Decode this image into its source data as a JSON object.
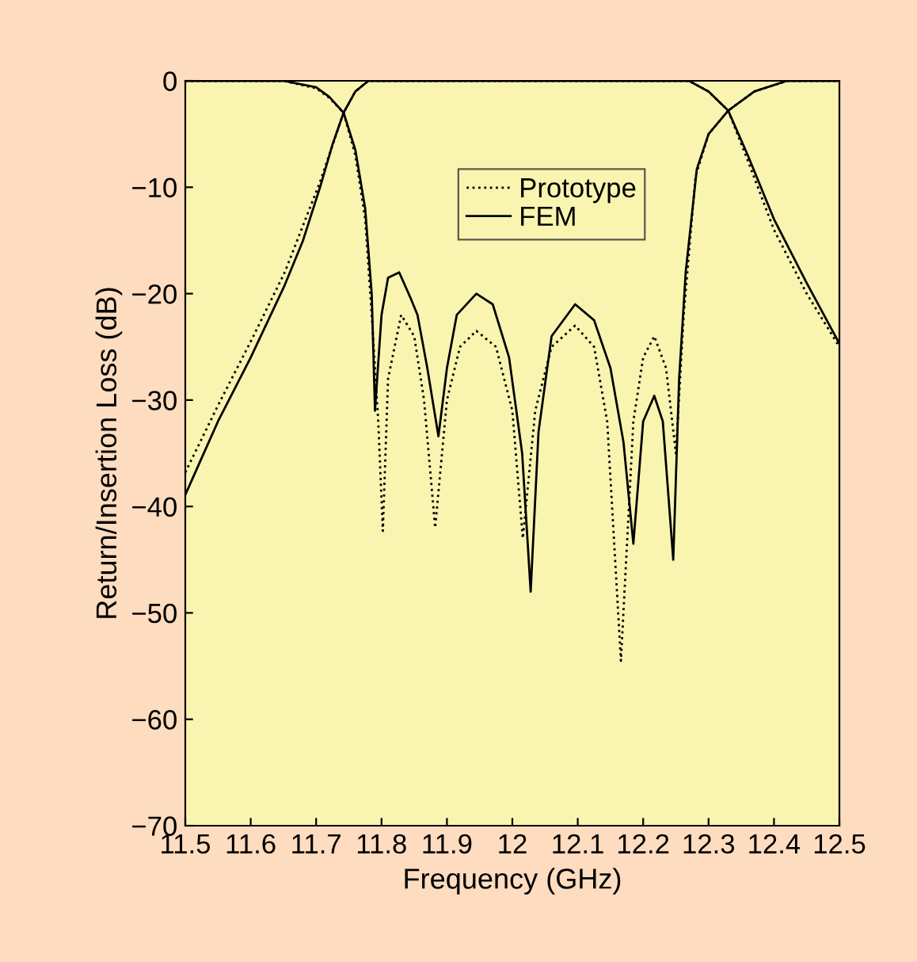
{
  "chart_data": {
    "type": "line",
    "xlabel": "Frequency (GHz)",
    "ylabel": "Return/Insertion Loss (dB)",
    "xlim": [
      11.5,
      12.5
    ],
    "xticks": [
      11.5,
      11.6,
      11.7,
      11.8,
      11.9,
      12,
      12.1,
      12.2,
      12.3,
      12.4,
      12.5
    ],
    "ylim": [
      -70,
      0
    ],
    "yticks": [
      {
        "value": -70,
        "label": "−70"
      },
      {
        "value": -60,
        "label": "−60"
      },
      {
        "value": -50,
        "label": "−50"
      },
      {
        "value": -40,
        "label": "−40"
      },
      {
        "value": -30,
        "label": "−30"
      },
      {
        "value": -20,
        "label": "−20"
      },
      {
        "value": -10,
        "label": "−10"
      },
      0
    ],
    "grid": false,
    "legend": "top",
    "marker": "none",
    "series": [
      {
        "name": "Prototype",
        "color": "#000000",
        "line_style": "dotted",
        "x": [
          11.5,
          11.65,
          11.7,
          11.72,
          11.742,
          11.76,
          11.775,
          11.785,
          11.795,
          11.802,
          11.81,
          11.83,
          11.85,
          11.865,
          11.882,
          11.9,
          11.92,
          11.945,
          11.975,
          12.0,
          12.016,
          12.035,
          12.06,
          12.096,
          12.125,
          12.145,
          12.166,
          12.185,
          12.2,
          12.217,
          12.235,
          12.25,
          12.262,
          12.28,
          12.3,
          12.33,
          12.37,
          12.42,
          12.5
        ],
        "values": [
          0,
          0,
          -0.7,
          -1.6,
          -3,
          -7,
          -13,
          -22,
          -32,
          -42.3,
          -28,
          -22,
          -24,
          -30,
          -42,
          -30,
          -25,
          -23.5,
          -25,
          -31,
          -43,
          -31,
          -25,
          -23,
          -25,
          -32,
          -54.5,
          -32,
          -26,
          -24,
          -27,
          -35,
          -22,
          -9,
          -5,
          -2.8,
          -1,
          0,
          0
        ]
      },
      {
        "color": "#000000",
        "line_style": "dotted",
        "x": [
          11.5,
          11.55,
          11.6,
          11.652,
          11.706,
          11.742,
          11.76,
          11.78,
          12.27,
          12.3,
          12.33,
          12.36,
          12.4,
          12.45,
          12.5
        ],
        "values": [
          -36.8,
          -30.5,
          -24.5,
          -18,
          -9.5,
          -3,
          -1,
          0,
          0,
          -1,
          -2.8,
          -7.5,
          -14,
          -20,
          -25
        ]
      },
      {
        "name": "FEM",
        "color": "#000000",
        "line_style": "solid",
        "x": [
          11.5,
          11.65,
          11.7,
          11.72,
          11.742,
          11.76,
          11.775,
          11.785,
          11.79,
          11.8,
          11.81,
          11.827,
          11.845,
          11.855,
          11.87,
          11.887,
          11.9,
          11.915,
          11.945,
          11.97,
          11.995,
          12.015,
          12.028,
          12.04,
          12.06,
          12.096,
          12.125,
          12.15,
          12.17,
          12.185,
          12.2,
          12.217,
          12.23,
          12.246,
          12.255,
          12.265,
          12.282,
          12.3,
          12.33,
          12.37,
          12.42,
          12.5
        ],
        "values": [
          0,
          0,
          -0.6,
          -1.5,
          -3,
          -6.5,
          -12,
          -20,
          -31,
          -22,
          -18.5,
          -18,
          -20.5,
          -22,
          -27,
          -33.4,
          -27,
          -22,
          -20,
          -21,
          -26,
          -35,
          -48,
          -33,
          -24,
          -21,
          -22.5,
          -27,
          -34,
          -43.5,
          -32,
          -29.6,
          -32,
          -45,
          -28,
          -18,
          -8.3,
          -5,
          -2.8,
          -1,
          0,
          0
        ]
      },
      {
        "color": "#000000",
        "line_style": "solid",
        "x": [
          11.5,
          11.55,
          11.6,
          11.652,
          11.68,
          11.706,
          11.725,
          11.742,
          11.76,
          11.78,
          12.27,
          12.3,
          12.33,
          12.36,
          12.4,
          12.45,
          12.5
        ],
        "values": [
          -38.9,
          -32,
          -26,
          -19.2,
          -15,
          -10,
          -6,
          -3,
          -1,
          0,
          0,
          -1,
          -2.8,
          -7,
          -13,
          -19,
          -24.7
        ]
      }
    ]
  }
}
